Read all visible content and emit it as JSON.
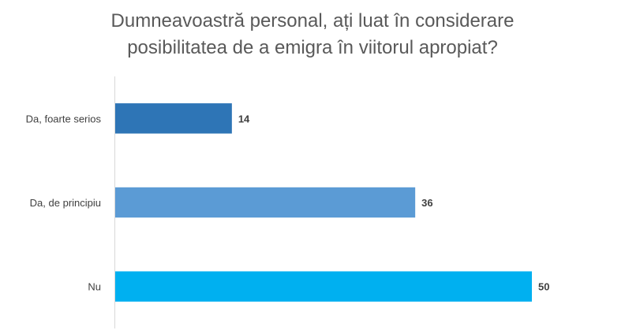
{
  "chart_data": {
    "type": "bar",
    "orientation": "horizontal",
    "title_lines": [
      "Dumneavoastră personal, ați luat în considerare",
      "posibilitatea de a emigra în viitorul apropiat?"
    ],
    "categories": [
      "Da, foarte serios",
      "Da, de principiu",
      "Nu"
    ],
    "values": [
      14,
      36,
      50
    ],
    "value_labels": [
      "14",
      "36",
      "50"
    ],
    "colors": [
      "#2e75b6",
      "#5b9bd5",
      "#00b0f0"
    ],
    "xlim": [
      0,
      50
    ],
    "grid": false,
    "legend": "none",
    "xlabel": "",
    "ylabel": ""
  }
}
